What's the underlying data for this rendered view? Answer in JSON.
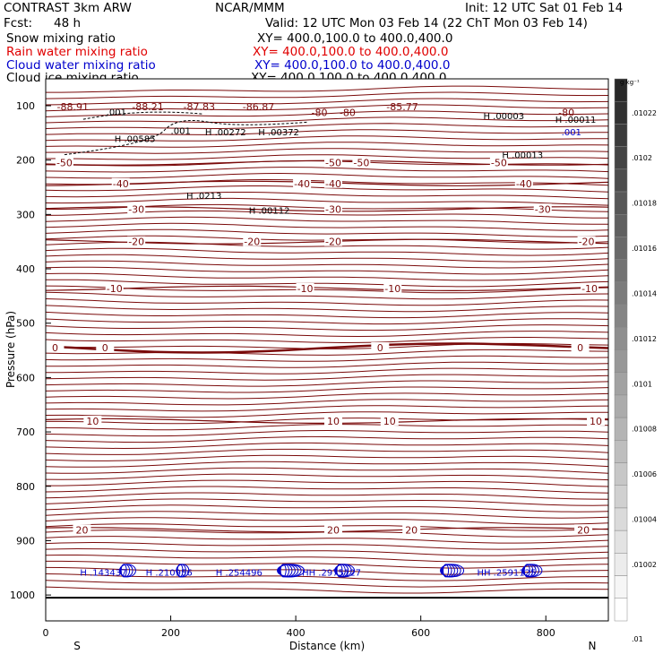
{
  "header": {
    "title_left": "CONTRAST   3km ARW",
    "title_center": "NCAR/MMM",
    "init": "Init: 12 UTC Sat 01 Feb 14",
    "fcst_label": "Fcst:",
    "fcst_value": "48 h",
    "valid": "Valid: 12 UTC Mon 03 Feb 14 (22 ChT Mon 03 Feb 14)"
  },
  "legend": [
    {
      "name": "Snow mixing ratio",
      "xy": "XY=  400.0,100.0 to 400.0,400.0",
      "color": "#000000"
    },
    {
      "name": "Rain water mixing ratio",
      "xy": "XY=  400.0,100.0 to 400.0,400.0",
      "color": "#e00000"
    },
    {
      "name": "Cloud water mixing ratio",
      "xy": "XY=  400.0,100.0 to 400.0,400.0",
      "color": "#0000cc"
    },
    {
      "name": "Cloud ice mixing ratio",
      "xy": "XY=  400.0,100.0 to 400.0,400.0",
      "color": "#000000"
    }
  ],
  "chart_data": {
    "type": "contour-cross-section",
    "xlabel": "Distance (km)",
    "ylabel": "Pressure (hPa)",
    "xlim": [
      0,
      900
    ],
    "ylim": [
      1050,
      60
    ],
    "x_ticks": [
      0,
      200,
      400,
      600,
      800
    ],
    "y_ticks": [
      100,
      200,
      300,
      400,
      500,
      600,
      700,
      800,
      900,
      1000
    ],
    "x_end_labels": {
      "left": "S",
      "right": "N"
    },
    "colorbar": {
      "unit": "g kg⁻¹",
      "labels": [
        ".01022",
        ".0102",
        ".01018",
        ".01016",
        ".01014",
        ".01012",
        ".0101",
        ".01008",
        ".01006",
        ".01004",
        ".01002",
        ".01"
      ]
    },
    "temperature_contours_C": [
      {
        "value": -50,
        "pressure": 205,
        "labels": [
          {
            "x": 30,
            "text": "-50"
          },
          {
            "x": 460,
            "text": "-50"
          },
          {
            "x": 505,
            "text": "-50"
          },
          {
            "x": 725,
            "text": "-50"
          }
        ]
      },
      {
        "value": -40,
        "pressure": 243,
        "labels": [
          {
            "x": 120,
            "text": "-40"
          },
          {
            "x": 410,
            "text": "-40"
          },
          {
            "x": 460,
            "text": "-40"
          },
          {
            "x": 765,
            "text": "-40"
          }
        ]
      },
      {
        "value": -30,
        "pressure": 290,
        "labels": [
          {
            "x": 145,
            "text": "-30"
          },
          {
            "x": 460,
            "text": "-30"
          },
          {
            "x": 795,
            "text": "-30"
          }
        ]
      },
      {
        "value": -20,
        "pressure": 350,
        "labels": [
          {
            "x": 145,
            "text": "-20"
          },
          {
            "x": 330,
            "text": "-20"
          },
          {
            "x": 460,
            "text": "-20"
          },
          {
            "x": 865,
            "text": "-20"
          }
        ]
      },
      {
        "value": -10,
        "pressure": 436,
        "labels": [
          {
            "x": 110,
            "text": "-10"
          },
          {
            "x": 415,
            "text": "-10"
          },
          {
            "x": 555,
            "text": "-10"
          },
          {
            "x": 870,
            "text": "-10"
          }
        ]
      },
      {
        "value": 0,
        "pressure": 545,
        "labels": [
          {
            "x": 15,
            "text": "0"
          },
          {
            "x": 95,
            "text": "0"
          },
          {
            "x": 535,
            "text": "0"
          },
          {
            "x": 855,
            "text": "0"
          }
        ]
      },
      {
        "value": 10,
        "pressure": 680,
        "labels": [
          {
            "x": 75,
            "text": "10"
          },
          {
            "x": 460,
            "text": "10"
          },
          {
            "x": 550,
            "text": "10"
          },
          {
            "x": 880,
            "text": "10"
          }
        ]
      },
      {
        "value": 20,
        "pressure": 880,
        "labels": [
          {
            "x": 58,
            "text": "20"
          },
          {
            "x": 460,
            "text": "20"
          },
          {
            "x": 585,
            "text": "20"
          },
          {
            "x": 860,
            "text": "20"
          }
        ]
      }
    ],
    "tropopause_labels": [
      {
        "x": 18,
        "text": "-88.91"
      },
      {
        "x": 138,
        "text": "-88.21"
      },
      {
        "x": 220,
        "text": "-87.83"
      },
      {
        "x": 315,
        "text": "-86.87"
      },
      {
        "x": 545,
        "text": "-85.77"
      },
      {
        "x": 425,
        "text": "-80"
      },
      {
        "x": 470,
        "text": "-80"
      },
      {
        "x": 820,
        "text": "-80"
      }
    ],
    "maxima": [
      {
        "x": 55,
        "text": "H .143437"
      },
      {
        "x": 160,
        "text": "H .210956"
      },
      {
        "x": 272,
        "text": "H .254496"
      },
      {
        "x": 410,
        "text": "HH .2975127"
      },
      {
        "x": 690,
        "text": "HH .2591125"
      },
      {
        "x": 97,
        "text": ".001"
      },
      {
        "x": 200,
        "text": ".001"
      },
      {
        "x": 825,
        "text": ".001"
      },
      {
        "x": 110,
        "text": "H .00585"
      },
      {
        "x": 255,
        "text": "H .00272"
      },
      {
        "x": 340,
        "text": "H .00372"
      },
      {
        "x": 225,
        "text": "H .0213"
      },
      {
        "x": 325,
        "text": "H .00112"
      },
      {
        "x": 700,
        "text": "H .00003"
      },
      {
        "x": 730,
        "text": "H .00013"
      },
      {
        "x": 815,
        "text": "H .00011"
      }
    ]
  }
}
